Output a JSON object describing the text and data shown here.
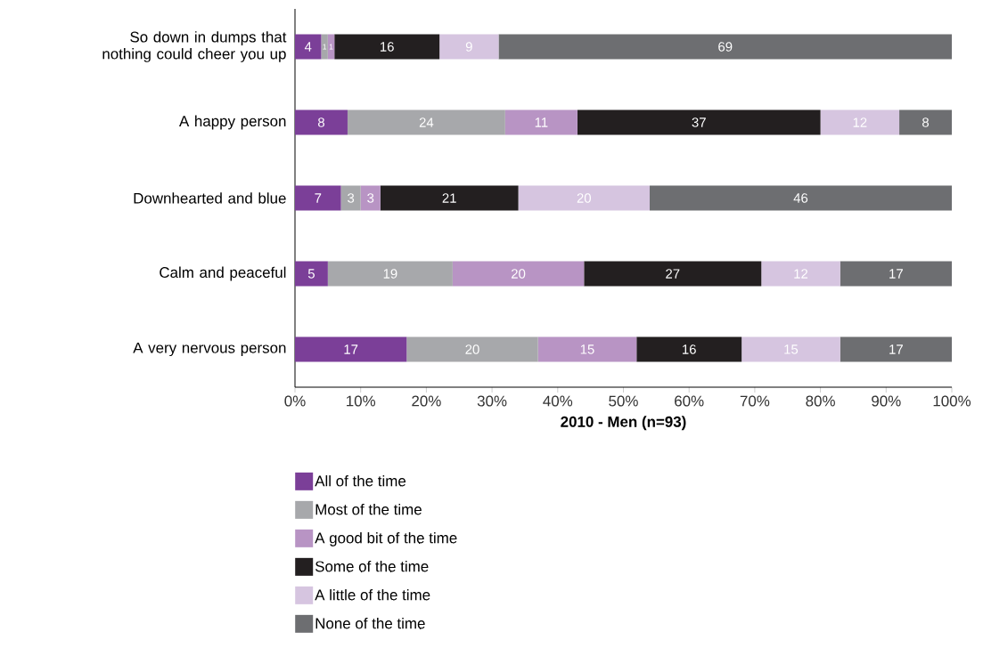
{
  "chart_data": {
    "type": "bar",
    "orientation": "horizontal",
    "stacked": true,
    "data_labels": true,
    "legend": "bottom",
    "categories": [
      "So down in dumps that nothing could cheer you up",
      "A happy person",
      "Downhearted and blue",
      "Calm and peaceful",
      "A very nervous person"
    ],
    "series": [
      {
        "name": "All of the time",
        "color": "#7b3f98",
        "values": [
          4,
          8,
          7,
          5,
          17
        ]
      },
      {
        "name": "Most of the time",
        "color": "#a7a8ab",
        "values": [
          1,
          24,
          3,
          19,
          20
        ]
      },
      {
        "name": "A good bit of the time",
        "color": "#b894c4",
        "values": [
          1,
          11,
          3,
          20,
          15
        ]
      },
      {
        "name": "Some of the time",
        "color": "#231f20",
        "values": [
          16,
          37,
          21,
          27,
          16
        ]
      },
      {
        "name": "A little of the time",
        "color": "#d6c5e0",
        "values": [
          9,
          12,
          20,
          12,
          15
        ]
      },
      {
        "name": "None of the time",
        "color": "#6d6e71",
        "values": [
          69,
          8,
          46,
          17,
          17
        ]
      }
    ],
    "xlim": [
      0,
      100
    ],
    "xticks": [
      {
        "value": 0,
        "label": "0%"
      },
      {
        "value": 10,
        "label": "10%"
      },
      {
        "value": 20,
        "label": "20%"
      },
      {
        "value": 30,
        "label": "30%"
      },
      {
        "value": 40,
        "label": "40%"
      },
      {
        "value": 50,
        "label": "50%"
      },
      {
        "value": 60,
        "label": "60%"
      },
      {
        "value": 70,
        "label": "70%"
      },
      {
        "value": 80,
        "label": "80%"
      },
      {
        "value": 90,
        "label": "90%"
      },
      {
        "value": 100,
        "label": "100%"
      }
    ],
    "xlabel": "2010 - Men (n=93)"
  }
}
